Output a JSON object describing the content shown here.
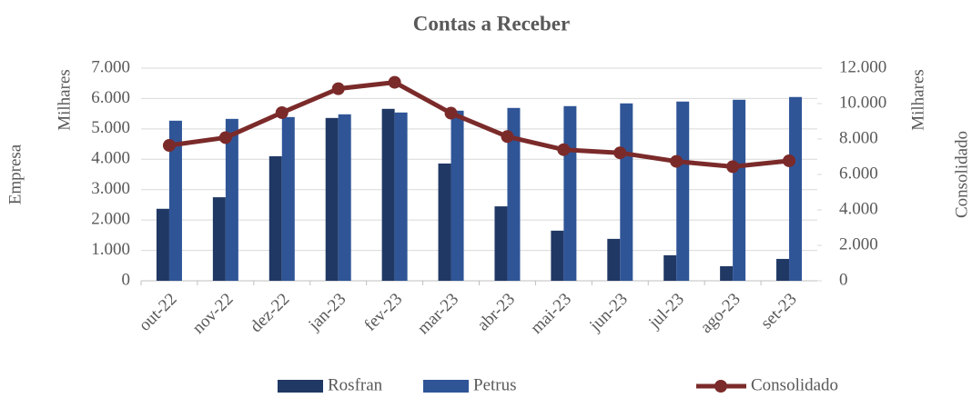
{
  "chart_data": {
    "type": "bar_line",
    "title": "Contas a Receber",
    "y_label": "Empresa",
    "y_unit": "Milhares",
    "y2_label": "Consolidado",
    "y2_unit": "Milhares",
    "categories": [
      "out-22",
      "nov-22",
      "dez-22",
      "jan-23",
      "fev-23",
      "mar-23",
      "abr-23",
      "mai-23",
      "jun-23",
      "jul-23",
      "ago-23",
      "set-23"
    ],
    "series": [
      {
        "name": "Rosfran",
        "type": "bar",
        "color": "#203864",
        "values": [
          2370,
          2750,
          4100,
          5360,
          5660,
          3860,
          2450,
          1650,
          1380,
          840,
          480,
          720
        ]
      },
      {
        "name": "Petrus",
        "type": "bar",
        "color": "#2f5597",
        "values": [
          5270,
          5330,
          5390,
          5480,
          5540,
          5600,
          5690,
          5750,
          5840,
          5900,
          5960,
          6050
        ]
      },
      {
        "name": "Consolidado",
        "type": "line",
        "axis": "y2",
        "color": "#7b2a2a",
        "values": [
          7640,
          8080,
          9490,
          10840,
          11200,
          9460,
          8140,
          7400,
          7220,
          6740,
          6440,
          6770
        ]
      }
    ],
    "ylim": [
      0,
      7000
    ],
    "yticks": [
      0,
      {
        "value": 1000,
        "label": "1.000"
      },
      {
        "value": 2000,
        "label": "2.000"
      },
      {
        "value": 3000,
        "label": "3.000"
      },
      {
        "value": 4000,
        "label": "4.000"
      },
      {
        "value": 5000,
        "label": "5.000"
      },
      {
        "value": 6000,
        "label": "6.000"
      },
      {
        "value": 7000,
        "label": "7.000"
      }
    ],
    "y2lim": [
      0,
      12000
    ],
    "y2ticks": [
      0,
      {
        "value": 2000,
        "label": "2.000"
      },
      {
        "value": 4000,
        "label": "4.000"
      },
      {
        "value": 6000,
        "label": "6.000"
      },
      {
        "value": 8000,
        "label": "8.000"
      },
      {
        "value": 10000,
        "label": "10.000"
      },
      {
        "value": 12000,
        "label": "12.000"
      }
    ],
    "grid": true,
    "legend": "bottom"
  }
}
